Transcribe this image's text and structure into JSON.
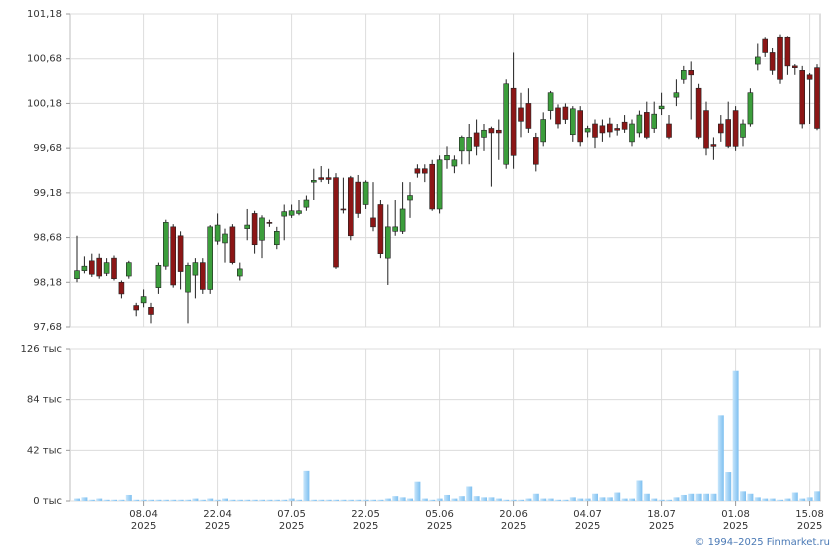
{
  "chart_data": [
    {
      "type": "candlestick",
      "ylim": [
        97.68,
        101.18
      ],
      "yticks": [
        {
          "value": 97.68,
          "label": "97,68"
        },
        {
          "value": 98.18,
          "label": "98,18"
        },
        {
          "value": 98.68,
          "label": "98,68"
        },
        {
          "value": 99.18,
          "label": "99,18"
        },
        {
          "value": 99.68,
          "label": "99,68"
        },
        {
          "value": 100.18,
          "label": "100,18"
        },
        {
          "value": 100.68,
          "label": "100,68"
        },
        {
          "value": 101.18,
          "label": "101,18"
        }
      ],
      "up_color": "#3c9e3c",
      "down_color": "#8c1616",
      "grid": true,
      "open": [
        98.22,
        98.31,
        98.42,
        98.45,
        98.28,
        98.45,
        98.18,
        98.25,
        97.92,
        97.95,
        97.9,
        98.12,
        98.36,
        98.8,
        98.7,
        98.07,
        98.26,
        98.4,
        98.1,
        98.64,
        98.62,
        98.8,
        98.25,
        98.78,
        98.95,
        98.65,
        98.85,
        98.6,
        98.92,
        98.93,
        98.95,
        99.02,
        99.3,
        99.35,
        99.35,
        99.35,
        99.0,
        99.35,
        99.3,
        99.05,
        98.9,
        99.05,
        98.45,
        98.75,
        98.75,
        99.1,
        99.45,
        99.45,
        99.5,
        99.0,
        99.55,
        99.48,
        99.65,
        99.65,
        99.85,
        99.8,
        99.9,
        99.88,
        99.5,
        100.35,
        100.13,
        100.18,
        99.8,
        99.75,
        100.1,
        100.13,
        100.14,
        99.83,
        100.1,
        99.86,
        99.95,
        99.93,
        99.95,
        99.9,
        99.97,
        99.75,
        99.85,
        100.08,
        99.9,
        100.12,
        99.95,
        100.25,
        100.45,
        100.55,
        100.35,
        100.1,
        99.72,
        99.95,
        100.0,
        100.1,
        99.8,
        99.95,
        100.62,
        100.9,
        100.75,
        100.92,
        100.92,
        100.6,
        100.55,
        100.5,
        100.58
      ],
      "high": [
        98.7,
        98.47,
        98.5,
        98.5,
        98.45,
        98.48,
        98.2,
        98.42,
        97.95,
        98.1,
        97.95,
        98.4,
        98.88,
        98.83,
        98.75,
        98.4,
        98.45,
        98.45,
        98.82,
        98.95,
        98.78,
        98.83,
        98.4,
        99.0,
        98.98,
        98.93,
        98.88,
        98.8,
        99.05,
        99.05,
        99.1,
        99.15,
        99.45,
        99.48,
        99.45,
        99.4,
        99.35,
        99.37,
        99.38,
        99.32,
        99.3,
        99.1,
        99.05,
        99.1,
        99.3,
        99.3,
        99.5,
        99.5,
        99.55,
        99.6,
        99.7,
        99.6,
        99.82,
        99.95,
        100.0,
        99.95,
        99.92,
        100.0,
        100.45,
        100.75,
        100.3,
        100.35,
        99.85,
        100.08,
        100.32,
        100.17,
        100.18,
        100.15,
        100.15,
        99.93,
        100.0,
        100.0,
        100.02,
        99.95,
        100.05,
        100.0,
        100.1,
        100.2,
        100.2,
        100.3,
        100.05,
        100.45,
        100.6,
        100.65,
        100.4,
        100.2,
        99.8,
        100.05,
        100.2,
        100.15,
        100.0,
        100.35,
        100.85,
        100.92,
        100.8,
        100.95,
        100.93,
        100.62,
        100.6,
        100.52,
        100.62
      ],
      "low": [
        98.18,
        98.28,
        98.24,
        98.22,
        98.25,
        98.2,
        98.0,
        98.22,
        97.8,
        97.9,
        97.72,
        98.05,
        98.32,
        98.12,
        98.1,
        97.72,
        98.0,
        98.05,
        98.05,
        98.6,
        98.4,
        98.38,
        98.2,
        98.65,
        98.5,
        98.45,
        98.8,
        98.55,
        98.65,
        98.9,
        98.93,
        98.98,
        99.1,
        99.3,
        99.28,
        98.33,
        98.95,
        98.65,
        98.9,
        99.0,
        98.75,
        98.45,
        98.15,
        98.7,
        98.72,
        98.9,
        99.35,
        99.3,
        98.98,
        98.95,
        99.45,
        99.4,
        99.5,
        99.5,
        99.6,
        99.65,
        99.25,
        99.55,
        99.45,
        99.45,
        99.8,
        99.85,
        99.42,
        99.7,
        100.0,
        99.9,
        99.95,
        99.75,
        99.7,
        99.8,
        99.68,
        99.75,
        99.8,
        99.82,
        99.85,
        99.7,
        99.8,
        99.78,
        99.85,
        100.05,
        99.78,
        100.15,
        100.4,
        100.0,
        99.78,
        99.6,
        99.55,
        99.75,
        99.68,
        99.65,
        99.7,
        99.92,
        100.55,
        100.7,
        100.5,
        100.4,
        100.5,
        100.5,
        99.9,
        99.95,
        99.88
      ],
      "close": [
        98.31,
        98.36,
        98.27,
        98.25,
        98.4,
        98.22,
        98.05,
        98.4,
        97.87,
        98.02,
        97.82,
        98.37,
        98.85,
        98.15,
        98.3,
        98.37,
        98.4,
        98.1,
        98.8,
        98.82,
        98.72,
        98.4,
        98.33,
        98.82,
        98.6,
        98.9,
        98.84,
        98.75,
        98.97,
        98.98,
        98.98,
        99.1,
        99.32,
        99.33,
        99.33,
        98.35,
        98.99,
        98.7,
        98.95,
        99.3,
        98.8,
        98.5,
        98.8,
        98.8,
        99.0,
        99.15,
        99.4,
        99.4,
        99.0,
        99.55,
        99.6,
        99.55,
        99.8,
        99.8,
        99.7,
        99.88,
        99.85,
        99.85,
        100.4,
        99.6,
        99.98,
        99.9,
        99.5,
        100.0,
        100.3,
        99.95,
        100.0,
        100.12,
        99.75,
        99.9,
        99.8,
        99.85,
        99.86,
        99.88,
        99.89,
        99.95,
        100.05,
        99.8,
        100.06,
        100.15,
        99.8,
        100.3,
        100.55,
        100.5,
        99.8,
        99.68,
        99.7,
        99.85,
        99.7,
        99.7,
        99.95,
        100.3,
        100.7,
        100.75,
        100.55,
        100.45,
        100.6,
        100.58,
        99.95,
        100.45,
        99.9
      ]
    },
    {
      "type": "bar",
      "ylim": [
        0,
        126
      ],
      "yticks": [
        {
          "value": 0,
          "label": "0 тыс"
        },
        {
          "value": 42,
          "label": "42 тыс"
        },
        {
          "value": 84,
          "label": "84 тыс"
        },
        {
          "value": 126,
          "label": "126 тыс"
        }
      ],
      "color": "#9fd0f7",
      "grid": true,
      "values": [
        2,
        3,
        1,
        2,
        1,
        1,
        1,
        5,
        1,
        1,
        1,
        1,
        1,
        1,
        1,
        1,
        2,
        1,
        2,
        1,
        2,
        1,
        1,
        1,
        1,
        1,
        1,
        1,
        1,
        2,
        1,
        25,
        1,
        1,
        1,
        1,
        1,
        1,
        1,
        1,
        1,
        1,
        2,
        4,
        3,
        2,
        16,
        2,
        1,
        2,
        5,
        2,
        4,
        12,
        4,
        3,
        3,
        2,
        1,
        1,
        1,
        2,
        6,
        2,
        2,
        1,
        1,
        3,
        2,
        2,
        6,
        3,
        3,
        7,
        2,
        2,
        17,
        6,
        2,
        1,
        1,
        3,
        5,
        6,
        6,
        6,
        6,
        71,
        24,
        108,
        8,
        6,
        3,
        2,
        2,
        1,
        2,
        7,
        2,
        3,
        8
      ],
      "categories": [
        null,
        null,
        null,
        null,
        null,
        null,
        null,
        null,
        null,
        "08.04",
        null,
        null,
        null,
        null,
        null,
        null,
        null,
        null,
        null,
        "22.04",
        null,
        null,
        null,
        null,
        null,
        null,
        null,
        null,
        null,
        "07.05",
        null,
        null,
        null,
        null,
        null,
        null,
        null,
        null,
        null,
        "22.05",
        null,
        null,
        null,
        null,
        null,
        null,
        null,
        null,
        null,
        "05.06",
        null,
        null,
        null,
        null,
        null,
        null,
        null,
        null,
        null,
        "20.06",
        null,
        null,
        null,
        null,
        null,
        null,
        null,
        null,
        null,
        "04.07",
        null,
        null,
        null,
        null,
        null,
        null,
        null,
        null,
        null,
        "18.07",
        null,
        null,
        null,
        null,
        null,
        null,
        null,
        null,
        null,
        "01.08",
        null,
        null,
        null,
        null,
        null,
        null,
        null,
        null,
        null,
        "15.08",
        null
      ],
      "category_year": "2025"
    }
  ],
  "footer": "© 1994–2025 Finmarket.ru"
}
